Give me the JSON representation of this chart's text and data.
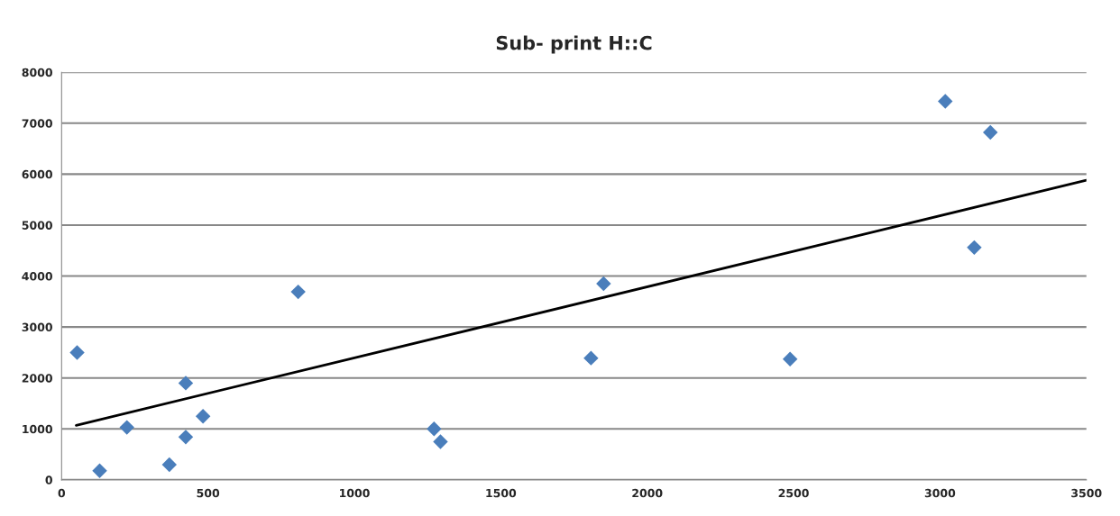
{
  "chart_data": {
    "type": "scatter",
    "title": "Sub- print H::C",
    "series": [
      {
        "color": "#4a7ebb",
        "marker": "diamond",
        "x": [
          53,
          130,
          223,
          368,
          424,
          424,
          483,
          808,
          1272,
          1294,
          1808,
          1851,
          2488,
          3018,
          3117,
          3172
        ],
        "values": [
          2500,
          180,
          1030,
          300,
          1900,
          840,
          1250,
          3690,
          1000,
          750,
          2390,
          3850,
          2370,
          7430,
          4560,
          6820
        ]
      },
      {
        "type": "line",
        "color": "#000000",
        "marker": "none",
        "line_style": "solid",
        "x": [
          50,
          3500
        ],
        "values": [
          1070,
          5880
        ]
      }
    ],
    "xlim": [
      0,
      3500
    ],
    "xticks": [
      0,
      500,
      1000,
      1500,
      2000,
      2500,
      3000,
      3500
    ],
    "ylim": [
      0,
      8000
    ],
    "yticks": [
      0,
      1000,
      2000,
      3000,
      4000,
      5000,
      6000,
      7000,
      8000
    ],
    "grid": "y",
    "legend": false
  }
}
